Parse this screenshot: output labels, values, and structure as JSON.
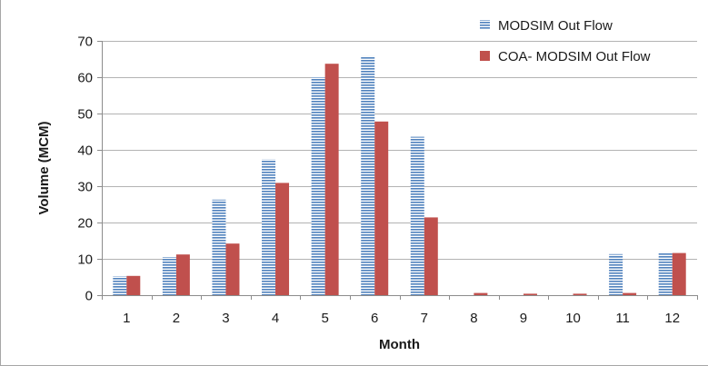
{
  "chart_data": {
    "type": "bar",
    "title": "",
    "xlabel": "Month",
    "ylabel": "Volume (MCM)",
    "categories": [
      "1",
      "2",
      "3",
      "4",
      "5",
      "6",
      "7",
      "8",
      "9",
      "10",
      "11",
      "12"
    ],
    "ylim": [
      0,
      70
    ],
    "yticks": [
      0,
      10,
      20,
      30,
      40,
      50,
      60,
      70
    ],
    "grid": true,
    "legend_position": "top-right",
    "series": [
      {
        "name": "MODSIM Out Flow",
        "color": "#4f81bd",
        "pattern": "horizontal-stripes",
        "values": [
          5.2,
          10.5,
          26.3,
          37.4,
          60.0,
          65.8,
          43.6,
          0,
          0,
          0,
          11.3,
          11.8
        ]
      },
      {
        "name": "COA- MODSIM Out Flow",
        "color": "#c0504d",
        "pattern": "solid",
        "values": [
          5.3,
          11.2,
          14.2,
          30.9,
          63.7,
          47.8,
          21.4,
          0.6,
          0.4,
          0.4,
          0.6,
          11.6
        ]
      }
    ]
  }
}
